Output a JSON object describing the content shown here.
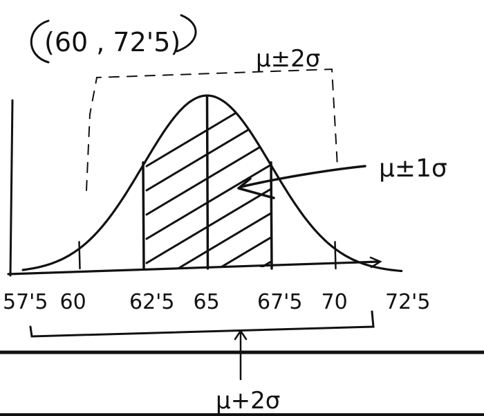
{
  "annotation_interval": "(60 , 72'5)",
  "labels": {
    "mu_2sigma_top": "μ±2σ",
    "mu_1sigma": "μ±1σ",
    "mu_2sigma_bottom": "μ+2σ"
  },
  "axis_ticks": [
    {
      "label": "57'5",
      "value": 57.5
    },
    {
      "label": "60",
      "value": 60
    },
    {
      "label": "62'5",
      "value": 62.5
    },
    {
      "label": "65",
      "value": 65
    },
    {
      "label": "67'5",
      "value": 67.5
    },
    {
      "label": "70",
      "value": 70
    },
    {
      "label": "72'5",
      "value": 72.5
    }
  ],
  "distribution": {
    "mean": 65,
    "sd": 2.5,
    "shaded_from": 62.5,
    "shaded_to": 67.5
  },
  "colors": {
    "ink": "#111111",
    "background": "#ffffff"
  }
}
